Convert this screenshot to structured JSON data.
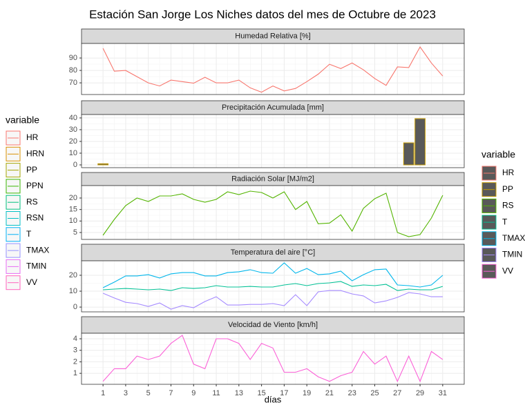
{
  "title": "Estación San Jorge Los Niches datos del mes de Octubre de 2023",
  "x_label": "días",
  "legends": [
    {
      "title": "variable",
      "items": [
        {
          "name": "HR",
          "color": "#F8766D"
        },
        {
          "name": "HRN",
          "color": "#D89000"
        },
        {
          "name": "PP",
          "color": "#A3A500"
        },
        {
          "name": "PPN",
          "color": "#39B600"
        },
        {
          "name": "RS",
          "color": "#00BF7D"
        },
        {
          "name": "RSN",
          "color": "#00BFC4"
        },
        {
          "name": "T",
          "color": "#00B0F6"
        },
        {
          "name": "TMAX",
          "color": "#9590FF"
        },
        {
          "name": "TMIN",
          "color": "#E76BF3"
        },
        {
          "name": "VV",
          "color": "#FF62BC"
        }
      ]
    },
    {
      "title": "variable",
      "items": [
        {
          "name": "HR",
          "color": "#F8766D"
        },
        {
          "name": "PP",
          "color": "#C49A00"
        },
        {
          "name": "RS",
          "color": "#53B400"
        },
        {
          "name": "T",
          "color": "#00C094"
        },
        {
          "name": "TMAX",
          "color": "#00B6EB"
        },
        {
          "name": "TMIN",
          "color": "#A58AFF"
        },
        {
          "name": "VV",
          "color": "#FB61D7"
        }
      ]
    }
  ],
  "chart_data": [
    {
      "type": "line",
      "title": "Humedad Relativa [%]",
      "x": [
        1,
        2,
        3,
        4,
        5,
        6,
        7,
        8,
        9,
        10,
        11,
        12,
        13,
        14,
        15,
        16,
        17,
        18,
        19,
        20,
        21,
        22,
        23,
        24,
        25,
        26,
        27,
        28,
        29,
        30,
        31
      ],
      "xlim": [
        -0.9,
        32.9
      ],
      "xticks": [
        1,
        3,
        5,
        7,
        9,
        11,
        13,
        15,
        17,
        19,
        21,
        23,
        25,
        27,
        29,
        31
      ],
      "ylim": [
        60.6,
        101.7
      ],
      "yticks": [
        70,
        80,
        90
      ],
      "series": [
        {
          "name": "HR",
          "color": "#F8766D",
          "values": [
            97.8,
            79.4,
            80,
            75,
            70,
            67.5,
            72.2,
            71,
            69.7,
            74.5,
            70,
            70,
            72.2,
            66,
            62.5,
            67.5,
            63.5,
            65.5,
            71,
            77,
            85,
            81.5,
            86,
            80.5,
            73.5,
            68,
            82.8,
            82.3,
            98.9,
            86,
            75.5
          ]
        }
      ]
    },
    {
      "type": "bar",
      "title": "Precipitación Acumulada [mm]",
      "x": [
        1,
        2,
        3,
        4,
        5,
        6,
        7,
        8,
        9,
        10,
        11,
        12,
        13,
        14,
        15,
        16,
        17,
        18,
        19,
        20,
        21,
        22,
        23,
        24,
        25,
        26,
        27,
        28,
        29,
        30,
        31
      ],
      "xlim": [
        -0.9,
        32.9
      ],
      "xticks": [
        1,
        3,
        5,
        7,
        9,
        11,
        13,
        15,
        17,
        19,
        21,
        23,
        25,
        27,
        29,
        31
      ],
      "ylim": [
        -2.35,
        42.9
      ],
      "yticks": [
        0,
        10,
        20,
        30,
        40
      ],
      "series": [
        {
          "name": "PP",
          "color": "#C49A00",
          "values": [
            1,
            0,
            0,
            0,
            0,
            0,
            0,
            0,
            0,
            0,
            0,
            0,
            0,
            0,
            0,
            0,
            0,
            0,
            0,
            0,
            0,
            0,
            0,
            0,
            0,
            0,
            0,
            18.8,
            39.4,
            0,
            0
          ]
        }
      ]
    },
    {
      "type": "line",
      "title": "Radiación Solar [MJ/m2]",
      "x": [
        1,
        2,
        3,
        4,
        5,
        6,
        7,
        8,
        9,
        10,
        11,
        12,
        13,
        14,
        15,
        16,
        17,
        18,
        19,
        20,
        21,
        22,
        23,
        24,
        25,
        26,
        27,
        28,
        29,
        30,
        31
      ],
      "xlim": [
        -0.9,
        32.9
      ],
      "xticks": [
        1,
        3,
        5,
        7,
        9,
        11,
        13,
        15,
        17,
        19,
        21,
        23,
        25,
        27,
        29,
        31
      ],
      "ylim": [
        2.0,
        25.4
      ],
      "yticks": [
        5,
        10,
        15,
        20
      ],
      "series": [
        {
          "name": "RS",
          "color": "#53B400",
          "values": [
            3.8,
            10.7,
            16.7,
            20,
            18.5,
            20.9,
            20.9,
            21.8,
            19.4,
            18.2,
            19.4,
            22.7,
            21.5,
            23,
            22.4,
            20,
            22.7,
            15,
            18.5,
            8.8,
            9.1,
            12.7,
            5.6,
            15.5,
            19.7,
            22.1,
            5,
            3.2,
            4.1,
            11.3,
            21.2
          ]
        }
      ]
    },
    {
      "type": "line",
      "title": "Temperatura del aire [°C]",
      "x": [
        1,
        2,
        3,
        4,
        5,
        6,
        7,
        8,
        9,
        10,
        11,
        12,
        13,
        14,
        15,
        16,
        17,
        18,
        19,
        20,
        21,
        22,
        23,
        24,
        25,
        26,
        27,
        28,
        29,
        30,
        31
      ],
      "xlim": [
        -0.9,
        32.9
      ],
      "xticks": [
        1,
        3,
        5,
        7,
        9,
        11,
        13,
        15,
        17,
        19,
        21,
        23,
        25,
        27,
        29,
        31
      ],
      "ylim": [
        -3.0,
        29.1
      ],
      "yticks": [
        0,
        10,
        20
      ],
      "series": [
        {
          "name": "T",
          "color": "#00C094",
          "values": [
            10.9,
            11.3,
            11.7,
            11.3,
            10.9,
            11.3,
            10.4,
            12.2,
            11.7,
            12.2,
            13.5,
            12.6,
            12.6,
            13,
            12.6,
            12.6,
            13.9,
            14.8,
            13.5,
            14.8,
            15.2,
            16.1,
            13,
            13.9,
            13.5,
            14.3,
            10.4,
            11.3,
            10.9,
            10.9,
            13
          ]
        },
        {
          "name": "TMAX",
          "color": "#00B6EB",
          "values": [
            12.2,
            15.7,
            19.6,
            19.6,
            20.4,
            18.3,
            20.9,
            21.7,
            21.7,
            19.6,
            19.6,
            21.7,
            22.2,
            23.5,
            21.7,
            21.3,
            27.8,
            21.3,
            24.3,
            20.4,
            20.9,
            22.6,
            16.5,
            20.4,
            23.5,
            23.9,
            13.9,
            13.5,
            12.6,
            13.9,
            20
          ]
        },
        {
          "name": "TMIN",
          "color": "#A58AFF",
          "values": [
            8.7,
            5.7,
            3,
            2.2,
            0.4,
            2.6,
            -1.3,
            0.9,
            -0.4,
            3.5,
            6.5,
            1.3,
            1.3,
            1.7,
            1.7,
            2.2,
            0.9,
            7.8,
            0.9,
            9.6,
            10.4,
            10.4,
            8.3,
            7,
            2.6,
            3.9,
            6.1,
            9.1,
            8.3,
            6.5,
            6.5
          ]
        }
      ]
    },
    {
      "type": "line",
      "title": "Velocidad de Viento [km/h]",
      "x": [
        1,
        2,
        3,
        4,
        5,
        6,
        7,
        8,
        9,
        10,
        11,
        12,
        13,
        14,
        15,
        16,
        17,
        18,
        19,
        20,
        21,
        22,
        23,
        24,
        25,
        26,
        27,
        28,
        29,
        30,
        31
      ],
      "xlim": [
        -0.9,
        32.9
      ],
      "xticks": [
        1,
        3,
        5,
        7,
        9,
        11,
        13,
        15,
        17,
        19,
        21,
        23,
        25,
        27,
        29,
        31
      ],
      "ylim": [
        0.05,
        4.48
      ],
      "yticks": [
        1,
        2,
        3,
        4
      ],
      "series": [
        {
          "name": "VV",
          "color": "#FB61D7",
          "values": [
            0.3,
            1.4,
            1.4,
            2.5,
            2.2,
            2.5,
            3.6,
            4.3,
            1.8,
            1.4,
            4,
            4,
            3.6,
            2.2,
            3.6,
            3.2,
            1.1,
            1.1,
            1.4,
            0.7,
            0.3,
            0.8,
            1.1,
            2.9,
            1.8,
            2.5,
            0.3,
            2.5,
            0.3,
            2.9,
            2.2
          ]
        }
      ]
    }
  ]
}
